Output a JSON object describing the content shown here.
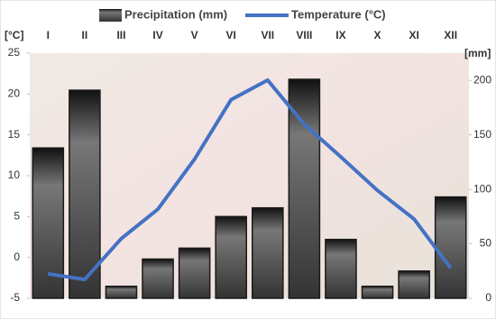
{
  "chart_data": {
    "type": "bar-line",
    "y_label": "[°C]",
    "y2_label": "[mm]",
    "categories": [
      "I",
      "II",
      "III",
      "IV",
      "V",
      "VI",
      "VII",
      "VIII",
      "IX",
      "X",
      "XI",
      "XII"
    ],
    "series": [
      {
        "name": "Precipitation (mm)",
        "type": "bar",
        "axis": "y2",
        "color": "#1a1a1a",
        "values": [
          138,
          191,
          11,
          36,
          46,
          75,
          83,
          201,
          54,
          11,
          25,
          93
        ]
      },
      {
        "name": "Temperature (°C)",
        "type": "line",
        "axis": "y",
        "color": "#4472c4",
        "values": [
          -2.0,
          -2.7,
          2.3,
          5.9,
          12.0,
          19.3,
          21.7,
          16.3,
          12.3,
          8.2,
          4.7,
          -1.3
        ]
      }
    ],
    "ylim": [
      -5,
      25
    ],
    "yticks": [
      -5,
      0,
      5,
      10,
      15,
      20,
      25
    ],
    "y2lim": [
      0,
      225
    ],
    "y2ticks": [
      0,
      50,
      100,
      150,
      200
    ]
  }
}
